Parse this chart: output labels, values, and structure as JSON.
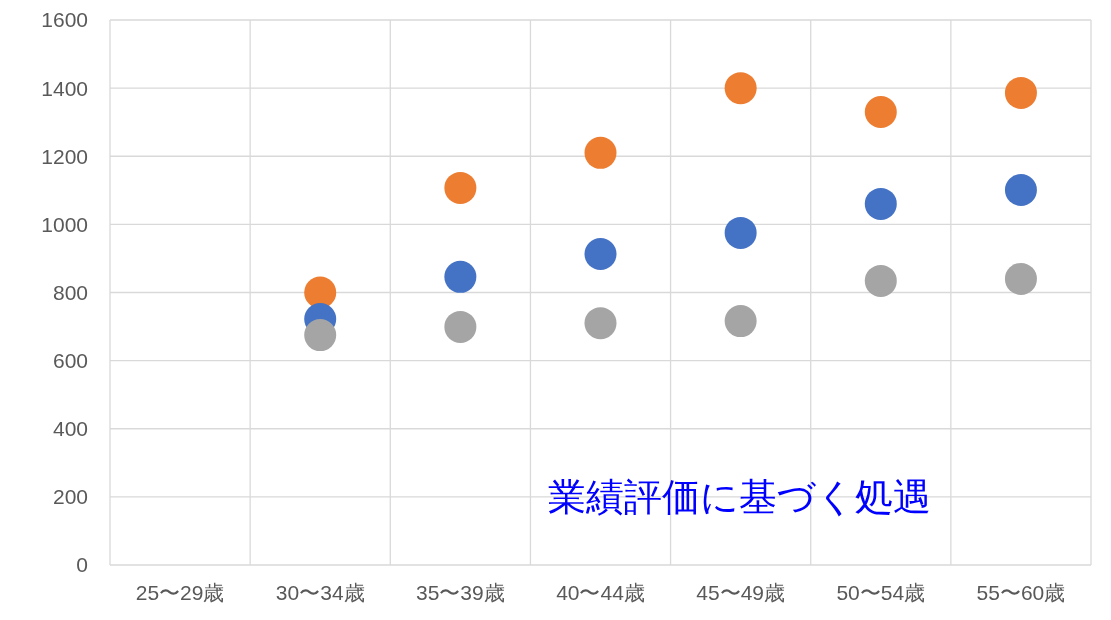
{
  "chart_data": {
    "type": "scatter",
    "categories": [
      "25〜29歳",
      "30〜34歳",
      "35〜39歳",
      "40〜44歳",
      "45〜49歳",
      "50〜54歳",
      "55〜60歳"
    ],
    "series": [
      {
        "color": "#ed7d31",
        "values": [
          null,
          800,
          1107,
          1210,
          1400,
          1330,
          1386
        ]
      },
      {
        "color": "#4472c4",
        "values": [
          null,
          722,
          846,
          913,
          975,
          1060,
          1101
        ]
      },
      {
        "color": "#a5a5a5",
        "values": [
          null,
          675,
          699,
          710,
          716,
          834,
          840
        ]
      }
    ],
    "ylim": [
      0,
      1600
    ],
    "yticks": [
      0,
      200,
      400,
      600,
      800,
      1000,
      1200,
      1400,
      1600
    ],
    "grid": true,
    "marker": "circle",
    "legend": false,
    "annotations": [
      "業績評価に基づく処遇"
    ]
  }
}
